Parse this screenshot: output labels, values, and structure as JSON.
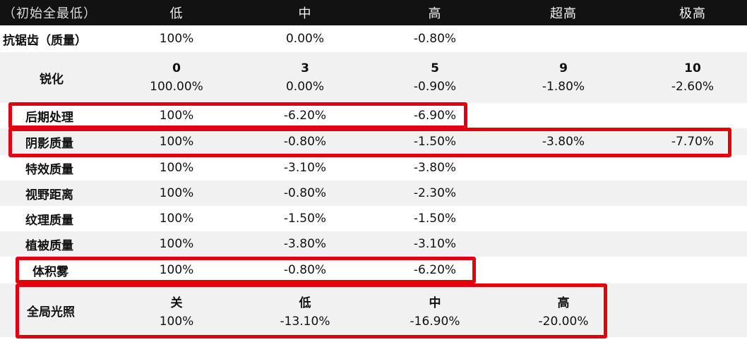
{
  "header": [
    "（初始全最低）",
    "低",
    "中",
    "高",
    "超高",
    "极高"
  ],
  "rows": [
    {
      "label": "抗锯齿（质量）",
      "values": [
        "100%",
        "0.00%",
        "-0.80%",
        "",
        ""
      ]
    },
    {
      "label": "锐化",
      "levels": [
        "0",
        "3",
        "5",
        "9",
        "10"
      ],
      "values": [
        "100.00%",
        "0.00%",
        "-0.90%",
        "-1.80%",
        "-2.60%"
      ]
    },
    {
      "label": "后期处理",
      "values": [
        "100%",
        "-6.20%",
        "-6.90%",
        "",
        ""
      ]
    },
    {
      "label": "阴影质量",
      "values": [
        "100%",
        "-0.80%",
        "-1.50%",
        "-3.80%",
        "-7.70%"
      ]
    },
    {
      "label": "特效质量",
      "values": [
        "100%",
        "-3.10%",
        "-3.80%",
        "",
        ""
      ]
    },
    {
      "label": "视野距离",
      "values": [
        "100%",
        "-0.80%",
        "-2.30%",
        "",
        ""
      ]
    },
    {
      "label": "纹理质量",
      "values": [
        "100%",
        "-1.50%",
        "-1.50%",
        "",
        ""
      ]
    },
    {
      "label": "植被质量",
      "values": [
        "100%",
        "-3.80%",
        "-3.10%",
        "",
        ""
      ]
    },
    {
      "label": "体积雾",
      "values": [
        "100%",
        "-0.80%",
        "-6.20%",
        "",
        ""
      ]
    },
    {
      "label": "全局光照",
      "levels": [
        "关",
        "低",
        "中",
        "高"
      ],
      "values": [
        "100%",
        "-13.10%",
        "-16.90%",
        "-20.00%"
      ]
    }
  ],
  "highlight_color": "#e3000f"
}
